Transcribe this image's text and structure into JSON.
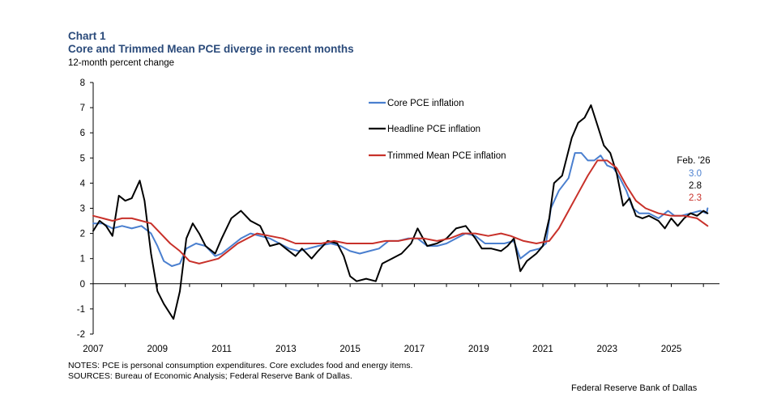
{
  "header": {
    "chart_number": "Chart 1",
    "title": "Core and Trimmed Mean PCE diverge in recent months",
    "units": "12-month percent change"
  },
  "footer": {
    "notes": "NOTES: PCE is personal consumption expenditures. Core excludes food and energy items.",
    "sources": "SOURCES: Bureau of Economic Analysis; Federal Reserve Bank of Dallas.",
    "credit": "Federal Reserve Bank of Dallas"
  },
  "annotation": {
    "label": "Feb. '26",
    "values": [
      {
        "series": "Core PCE inflation",
        "text": "3.0",
        "color": "#4a7fcf"
      },
      {
        "series": "Headline PCE inflation",
        "text": "2.8",
        "color": "#000000"
      },
      {
        "series": "Trimmed Mean PCE inflation",
        "text": "2.3",
        "color": "#c8312a"
      }
    ]
  },
  "chart_data": {
    "type": "line",
    "xlabel": "",
    "ylabel": "",
    "xlim": [
      2007.0,
      2026.5
    ],
    "ylim": [
      -2,
      8
    ],
    "y_ticks": [
      "-2",
      "-1",
      "0",
      "1",
      "2",
      "3",
      "4",
      "5",
      "6",
      "7",
      "8"
    ],
    "x_ticks": [
      "2007",
      "2009",
      "2011",
      "2013",
      "2015",
      "2017",
      "2019",
      "2021",
      "2023",
      "2025"
    ],
    "grid": false,
    "legend_position": "top-center",
    "series": [
      {
        "name": "Core PCE inflation",
        "color": "#4a7fcf",
        "points": [
          [
            2007.0,
            2.4
          ],
          [
            2007.3,
            2.4
          ],
          [
            2007.6,
            2.2
          ],
          [
            2007.9,
            2.3
          ],
          [
            2008.2,
            2.2
          ],
          [
            2008.5,
            2.3
          ],
          [
            2008.8,
            2.0
          ],
          [
            2009.0,
            1.5
          ],
          [
            2009.2,
            0.9
          ],
          [
            2009.45,
            0.7
          ],
          [
            2009.7,
            0.8
          ],
          [
            2009.9,
            1.4
          ],
          [
            2010.2,
            1.6
          ],
          [
            2010.5,
            1.5
          ],
          [
            2010.8,
            1.1
          ],
          [
            2011.0,
            1.2
          ],
          [
            2011.3,
            1.5
          ],
          [
            2011.6,
            1.8
          ],
          [
            2011.9,
            2.0
          ],
          [
            2012.2,
            1.9
          ],
          [
            2012.5,
            1.8
          ],
          [
            2012.8,
            1.6
          ],
          [
            2013.1,
            1.4
          ],
          [
            2013.4,
            1.3
          ],
          [
            2013.7,
            1.4
          ],
          [
            2014.0,
            1.5
          ],
          [
            2014.4,
            1.6
          ],
          [
            2014.7,
            1.5
          ],
          [
            2015.0,
            1.3
          ],
          [
            2015.3,
            1.2
          ],
          [
            2015.6,
            1.3
          ],
          [
            2015.9,
            1.4
          ],
          [
            2016.2,
            1.7
          ],
          [
            2016.5,
            1.7
          ],
          [
            2016.8,
            1.8
          ],
          [
            2017.1,
            1.8
          ],
          [
            2017.4,
            1.5
          ],
          [
            2017.7,
            1.5
          ],
          [
            2018.0,
            1.6
          ],
          [
            2018.3,
            1.8
          ],
          [
            2018.6,
            2.0
          ],
          [
            2018.9,
            1.9
          ],
          [
            2019.2,
            1.6
          ],
          [
            2019.5,
            1.6
          ],
          [
            2019.8,
            1.6
          ],
          [
            2020.1,
            1.7
          ],
          [
            2020.3,
            1.0
          ],
          [
            2020.6,
            1.3
          ],
          [
            2020.9,
            1.4
          ],
          [
            2021.1,
            1.6
          ],
          [
            2021.25,
            3.0
          ],
          [
            2021.5,
            3.7
          ],
          [
            2021.8,
            4.2
          ],
          [
            2022.0,
            5.2
          ],
          [
            2022.2,
            5.2
          ],
          [
            2022.4,
            4.9
          ],
          [
            2022.6,
            4.9
          ],
          [
            2022.8,
            5.1
          ],
          [
            2023.0,
            4.7
          ],
          [
            2023.2,
            4.6
          ],
          [
            2023.4,
            4.2
          ],
          [
            2023.6,
            3.7
          ],
          [
            2023.8,
            3.0
          ],
          [
            2024.0,
            2.8
          ],
          [
            2024.3,
            2.8
          ],
          [
            2024.6,
            2.6
          ],
          [
            2024.9,
            2.9
          ],
          [
            2025.1,
            2.7
          ],
          [
            2025.3,
            2.7
          ],
          [
            2025.6,
            2.8
          ],
          [
            2025.9,
            2.9
          ],
          [
            2026.1,
            2.8
          ],
          [
            2026.13,
            3.0
          ]
        ]
      },
      {
        "name": "Headline PCE inflation",
        "color": "#000000",
        "points": [
          [
            2007.0,
            2.1
          ],
          [
            2007.2,
            2.5
          ],
          [
            2007.4,
            2.3
          ],
          [
            2007.6,
            1.9
          ],
          [
            2007.8,
            3.5
          ],
          [
            2008.0,
            3.3
          ],
          [
            2008.2,
            3.4
          ],
          [
            2008.45,
            4.1
          ],
          [
            2008.6,
            3.3
          ],
          [
            2008.8,
            1.2
          ],
          [
            2009.0,
            -0.3
          ],
          [
            2009.2,
            -0.8
          ],
          [
            2009.5,
            -1.4
          ],
          [
            2009.7,
            -0.3
          ],
          [
            2009.9,
            1.8
          ],
          [
            2010.1,
            2.4
          ],
          [
            2010.3,
            2.0
          ],
          [
            2010.5,
            1.5
          ],
          [
            2010.8,
            1.2
          ],
          [
            2011.0,
            1.8
          ],
          [
            2011.3,
            2.6
          ],
          [
            2011.6,
            2.9
          ],
          [
            2011.9,
            2.5
          ],
          [
            2012.2,
            2.3
          ],
          [
            2012.5,
            1.5
          ],
          [
            2012.8,
            1.6
          ],
          [
            2013.0,
            1.4
          ],
          [
            2013.3,
            1.1
          ],
          [
            2013.5,
            1.4
          ],
          [
            2013.8,
            1.0
          ],
          [
            2014.0,
            1.3
          ],
          [
            2014.3,
            1.7
          ],
          [
            2014.6,
            1.6
          ],
          [
            2014.8,
            1.1
          ],
          [
            2015.0,
            0.3
          ],
          [
            2015.2,
            0.1
          ],
          [
            2015.5,
            0.2
          ],
          [
            2015.8,
            0.1
          ],
          [
            2016.0,
            0.8
          ],
          [
            2016.3,
            1.0
          ],
          [
            2016.6,
            1.2
          ],
          [
            2016.9,
            1.6
          ],
          [
            2017.1,
            2.2
          ],
          [
            2017.4,
            1.5
          ],
          [
            2017.7,
            1.6
          ],
          [
            2018.0,
            1.8
          ],
          [
            2018.3,
            2.2
          ],
          [
            2018.6,
            2.3
          ],
          [
            2018.9,
            1.8
          ],
          [
            2019.1,
            1.4
          ],
          [
            2019.4,
            1.4
          ],
          [
            2019.7,
            1.3
          ],
          [
            2019.9,
            1.5
          ],
          [
            2020.1,
            1.8
          ],
          [
            2020.3,
            0.5
          ],
          [
            2020.5,
            0.9
          ],
          [
            2020.8,
            1.2
          ],
          [
            2021.0,
            1.5
          ],
          [
            2021.2,
            2.6
          ],
          [
            2021.35,
            4.0
          ],
          [
            2021.6,
            4.3
          ],
          [
            2021.9,
            5.8
          ],
          [
            2022.1,
            6.4
          ],
          [
            2022.3,
            6.6
          ],
          [
            2022.5,
            7.1
          ],
          [
            2022.7,
            6.3
          ],
          [
            2022.9,
            5.5
          ],
          [
            2023.1,
            5.2
          ],
          [
            2023.3,
            4.4
          ],
          [
            2023.5,
            3.1
          ],
          [
            2023.7,
            3.4
          ],
          [
            2023.9,
            2.7
          ],
          [
            2024.1,
            2.6
          ],
          [
            2024.3,
            2.7
          ],
          [
            2024.6,
            2.5
          ],
          [
            2024.8,
            2.2
          ],
          [
            2025.0,
            2.6
          ],
          [
            2025.2,
            2.3
          ],
          [
            2025.4,
            2.6
          ],
          [
            2025.6,
            2.8
          ],
          [
            2025.8,
            2.7
          ],
          [
            2026.0,
            2.9
          ],
          [
            2026.13,
            2.8
          ]
        ]
      },
      {
        "name": "Trimmed Mean PCE inflation",
        "color": "#c8312a",
        "points": [
          [
            2007.0,
            2.7
          ],
          [
            2007.3,
            2.6
          ],
          [
            2007.6,
            2.5
          ],
          [
            2007.9,
            2.6
          ],
          [
            2008.2,
            2.6
          ],
          [
            2008.5,
            2.5
          ],
          [
            2008.8,
            2.4
          ],
          [
            2009.1,
            2.0
          ],
          [
            2009.4,
            1.6
          ],
          [
            2009.7,
            1.3
          ],
          [
            2010.0,
            0.9
          ],
          [
            2010.3,
            0.8
          ],
          [
            2010.6,
            0.9
          ],
          [
            2010.9,
            1.0
          ],
          [
            2011.2,
            1.3
          ],
          [
            2011.5,
            1.6
          ],
          [
            2011.8,
            1.8
          ],
          [
            2012.1,
            2.0
          ],
          [
            2012.5,
            1.9
          ],
          [
            2012.9,
            1.8
          ],
          [
            2013.3,
            1.6
          ],
          [
            2013.7,
            1.6
          ],
          [
            2014.1,
            1.6
          ],
          [
            2014.5,
            1.7
          ],
          [
            2014.9,
            1.6
          ],
          [
            2015.3,
            1.6
          ],
          [
            2015.7,
            1.6
          ],
          [
            2016.1,
            1.7
          ],
          [
            2016.5,
            1.7
          ],
          [
            2016.9,
            1.8
          ],
          [
            2017.3,
            1.8
          ],
          [
            2017.7,
            1.7
          ],
          [
            2018.1,
            1.8
          ],
          [
            2018.5,
            2.0
          ],
          [
            2018.9,
            2.0
          ],
          [
            2019.3,
            1.9
          ],
          [
            2019.7,
            2.0
          ],
          [
            2020.0,
            1.9
          ],
          [
            2020.4,
            1.7
          ],
          [
            2020.8,
            1.6
          ],
          [
            2021.2,
            1.7
          ],
          [
            2021.5,
            2.2
          ],
          [
            2021.8,
            2.9
          ],
          [
            2022.1,
            3.6
          ],
          [
            2022.4,
            4.3
          ],
          [
            2022.7,
            4.9
          ],
          [
            2023.0,
            4.9
          ],
          [
            2023.3,
            4.6
          ],
          [
            2023.6,
            3.9
          ],
          [
            2023.9,
            3.3
          ],
          [
            2024.2,
            3.0
          ],
          [
            2024.6,
            2.8
          ],
          [
            2025.0,
            2.7
          ],
          [
            2025.4,
            2.7
          ],
          [
            2025.8,
            2.6
          ],
          [
            2026.13,
            2.3
          ]
        ]
      }
    ]
  }
}
